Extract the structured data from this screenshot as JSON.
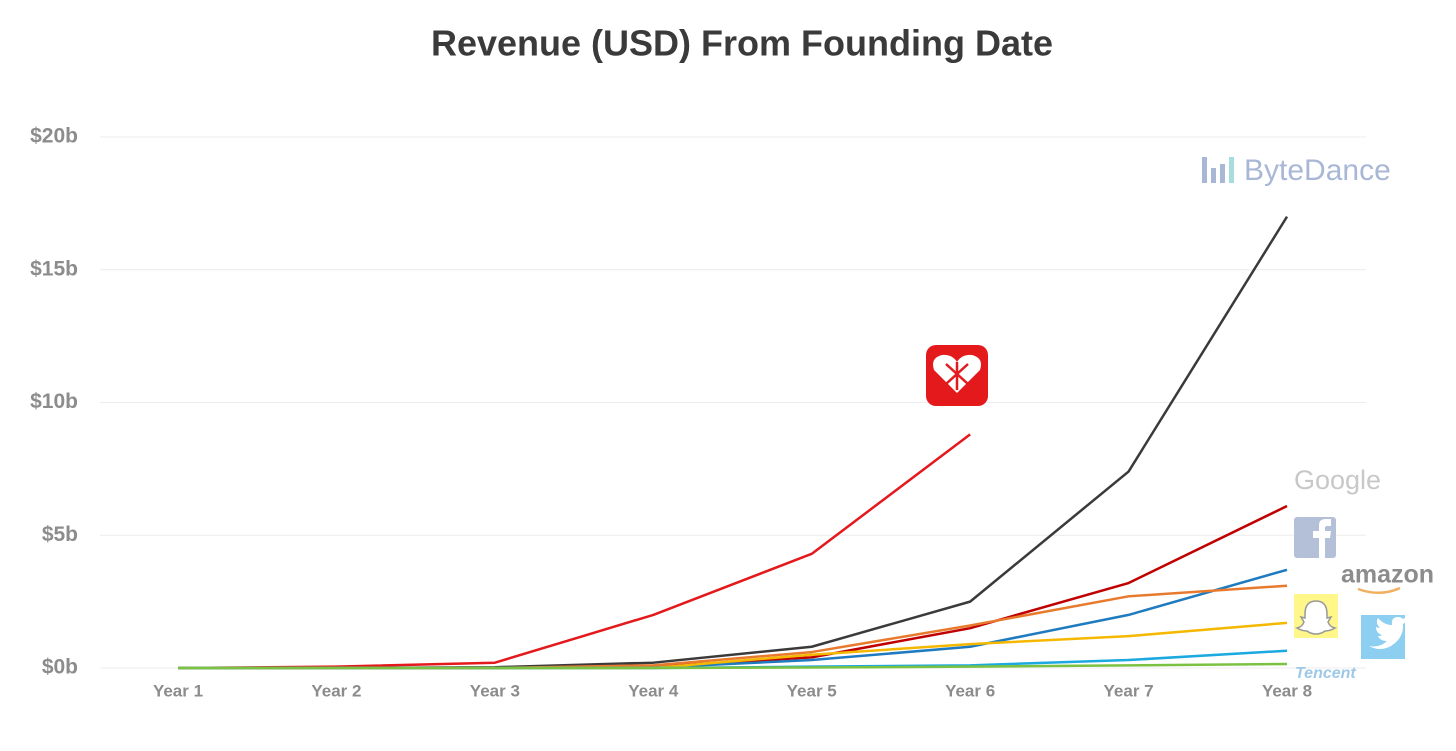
{
  "chart_data": {
    "type": "line",
    "title": "Revenue (USD) From Founding Date",
    "categories": [
      "Year 1",
      "Year 2",
      "Year 3",
      "Year 4",
      "Year 5",
      "Year 6",
      "Year 7",
      "Year 8"
    ],
    "ylim": [
      0,
      20
    ],
    "yticks": [
      {
        "value": 0,
        "label": "$0b"
      },
      {
        "value": 5,
        "label": "$5b"
      },
      {
        "value": 10,
        "label": "$10b"
      },
      {
        "value": 15,
        "label": "$15b"
      },
      {
        "value": 20,
        "label": "$20b"
      }
    ],
    "grid": true,
    "series": [
      {
        "color": "#e3191c",
        "values": [
          0,
          0.05,
          0.2,
          2.0,
          4.3,
          8.8,
          null,
          null
        ]
      },
      {
        "name": "ByteDance",
        "color": "#3a3a3a",
        "values": [
          0,
          0,
          0.03,
          0.2,
          0.8,
          2.5,
          7.4,
          17.0
        ]
      },
      {
        "name": "Google",
        "color": "#c00000",
        "values": [
          0,
          0,
          0,
          0.05,
          0.4,
          1.5,
          3.2,
          6.1
        ]
      },
      {
        "color": "#1f7bbf",
        "values": [
          0,
          0,
          0,
          0.02,
          0.3,
          0.8,
          2.0,
          3.7
        ]
      },
      {
        "name": "amazon",
        "color": "#e87a2e",
        "values": [
          0,
          0,
          0,
          0.1,
          0.6,
          1.6,
          2.7,
          3.1
        ]
      },
      {
        "color": "#f5b800",
        "values": [
          0,
          0,
          0,
          0,
          0.5,
          0.9,
          1.2,
          1.7
        ]
      },
      {
        "color": "#1ba9e0",
        "values": [
          0,
          0,
          0,
          0,
          0.05,
          0.1,
          0.3,
          0.65
        ]
      },
      {
        "name": "Tencent",
        "color": "#7cc242",
        "values": [
          0,
          0,
          0,
          0,
          0.02,
          0.05,
          0.1,
          0.15
        ]
      }
    ]
  }
}
